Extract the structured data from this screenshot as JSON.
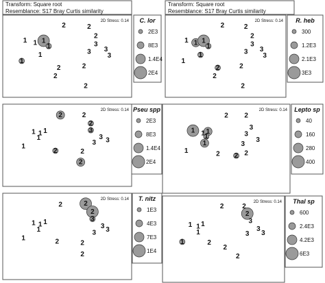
{
  "header": {
    "transform_text": "Transform: Square root",
    "resemblance_text": "Resemblance: S17 Bray Curtis similarity"
  },
  "stress_text": "2D Stress: 0.14",
  "chart_data": [
    {
      "type": "scatter",
      "title": "C. lor",
      "legend_values": [
        "2E3",
        "8E3",
        "1.4E4",
        "2E4"
      ],
      "points": [
        {
          "label": "1",
          "x": 1,
          "y": 4.5,
          "bubble": 0
        },
        {
          "label": "1",
          "x": 1.6,
          "y": 4.2,
          "bubble": 0
        },
        {
          "label": "1",
          "x": 2.1,
          "y": 4.45,
          "bubble": 3
        },
        {
          "label": "1",
          "x": 2.4,
          "y": 3.75,
          "bubble": 1
        },
        {
          "label": "1",
          "x": 1.9,
          "y": 2.6,
          "bubble": 0
        },
        {
          "label": "1",
          "x": 0.8,
          "y": 1.8,
          "bubble": 1
        },
        {
          "label": "2",
          "x": 3.3,
          "y": 6.5,
          "bubble": 0
        },
        {
          "label": "2",
          "x": 4.8,
          "y": 6.3,
          "bubble": 0
        },
        {
          "label": "2",
          "x": 4.5,
          "y": 1.1,
          "bubble": 0
        },
        {
          "label": "2",
          "x": 2.8,
          "y": -0.2,
          "bubble": 0
        },
        {
          "label": "2",
          "x": 5.2,
          "y": 5.1,
          "bubble": 0
        },
        {
          "label": "2",
          "x": 3.0,
          "y": 0.9,
          "bubble": 0
        },
        {
          "label": "2",
          "x": 4.6,
          "y": -1.5,
          "bubble": 0
        },
        {
          "label": "3",
          "x": 5.2,
          "y": 4.0,
          "bubble": 0
        },
        {
          "label": "3",
          "x": 5.8,
          "y": 3.3,
          "bubble": 0
        },
        {
          "label": "3",
          "x": 6.0,
          "y": 2.5,
          "bubble": 0
        },
        {
          "label": "3",
          "x": 4.8,
          "y": 3.0,
          "bubble": 0
        }
      ]
    },
    {
      "type": "scatter",
      "title": "R. heb",
      "legend_values": [
        "300",
        "1.2E3",
        "2.1E3",
        "3E3"
      ],
      "points": [
        {
          "label": "1",
          "x": 1,
          "y": 4.5,
          "bubble": 0
        },
        {
          "label": "1",
          "x": 1.6,
          "y": 4.2,
          "bubble": 2
        },
        {
          "label": "1",
          "x": 2.1,
          "y": 4.45,
          "bubble": 3
        },
        {
          "label": "1",
          "x": 2.4,
          "y": 3.75,
          "bubble": 1
        },
        {
          "label": "1",
          "x": 1.9,
          "y": 2.6,
          "bubble": 1
        },
        {
          "label": "1",
          "x": 0.8,
          "y": 1.8,
          "bubble": 0
        },
        {
          "label": "2",
          "x": 3.3,
          "y": 6.5,
          "bubble": 0
        },
        {
          "label": "2",
          "x": 4.8,
          "y": 6.3,
          "bubble": 0
        },
        {
          "label": "2",
          "x": 4.5,
          "y": 1.1,
          "bubble": 0
        },
        {
          "label": "2",
          "x": 2.8,
          "y": -0.2,
          "bubble": 0
        },
        {
          "label": "2",
          "x": 5.2,
          "y": 5.1,
          "bubble": 0
        },
        {
          "label": "2",
          "x": 3.0,
          "y": 0.9,
          "bubble": 1
        },
        {
          "label": "2",
          "x": 4.6,
          "y": -1.5,
          "bubble": 0
        },
        {
          "label": "3",
          "x": 5.2,
          "y": 4.0,
          "bubble": 0
        },
        {
          "label": "3",
          "x": 5.8,
          "y": 3.3,
          "bubble": 0
        },
        {
          "label": "3",
          "x": 6.0,
          "y": 2.5,
          "bubble": 0
        },
        {
          "label": "3",
          "x": 4.8,
          "y": 3.0,
          "bubble": 0
        }
      ]
    },
    {
      "type": "scatter",
      "title": "Pseu spp",
      "legend_values": [
        "2E3",
        "8E3",
        "1.4E4",
        "2E4"
      ],
      "points": [
        {
          "label": "1",
          "x": 1.5,
          "y": 4.2,
          "bubble": 0
        },
        {
          "label": "1",
          "x": 1.9,
          "y": 4.0,
          "bubble": 0
        },
        {
          "label": "1",
          "x": 2.2,
          "y": 4.3,
          "bubble": 0
        },
        {
          "label": "1",
          "x": 1.8,
          "y": 3.4,
          "bubble": 0
        },
        {
          "label": "1",
          "x": 0.9,
          "y": 2.3,
          "bubble": 0
        },
        {
          "label": "2",
          "x": 3.1,
          "y": 6.4,
          "bubble": 2
        },
        {
          "label": "2",
          "x": 4.5,
          "y": 6.4,
          "bubble": 0
        },
        {
          "label": "2",
          "x": 4.9,
          "y": 5.3,
          "bubble": 1
        },
        {
          "label": "2",
          "x": 2.8,
          "y": 1.7,
          "bubble": 1
        },
        {
          "label": "2",
          "x": 4.4,
          "y": 1.6,
          "bubble": 0
        },
        {
          "label": "2",
          "x": 4.3,
          "y": 0.2,
          "bubble": 2
        },
        {
          "label": "3",
          "x": 4.9,
          "y": 4.4,
          "bubble": 1
        },
        {
          "label": "3",
          "x": 5.5,
          "y": 3.5,
          "bubble": 0
        },
        {
          "label": "3",
          "x": 5.9,
          "y": 3.1,
          "bubble": 0
        },
        {
          "label": "3",
          "x": 5.1,
          "y": 2.8,
          "bubble": 0
        }
      ]
    },
    {
      "type": "scatter",
      "title": "Lepto sp",
      "legend_values": [
        "40",
        "160",
        "280",
        "400"
      ],
      "points": [
        {
          "label": "1",
          "x": 1.5,
          "y": 4.6,
          "bubble": 3
        },
        {
          "label": "1",
          "x": 2.1,
          "y": 4.3,
          "bubble": 0
        },
        {
          "label": "1",
          "x": 2.4,
          "y": 4.5,
          "bubble": 2
        },
        {
          "label": "1",
          "x": 2.3,
          "y": 3.9,
          "bubble": 1
        },
        {
          "label": "1",
          "x": 2.2,
          "y": 3.1,
          "bubble": 2
        },
        {
          "label": "1",
          "x": 1.1,
          "y": 2.2,
          "bubble": 0
        },
        {
          "label": "2",
          "x": 3.5,
          "y": 6.4,
          "bubble": 0
        },
        {
          "label": "2",
          "x": 4.7,
          "y": 6.4,
          "bubble": 0
        },
        {
          "label": "2",
          "x": 3.0,
          "y": 1.8,
          "bubble": 0
        },
        {
          "label": "2",
          "x": 4.1,
          "y": 1.6,
          "bubble": 1
        },
        {
          "label": "2",
          "x": 4.7,
          "y": 1.9,
          "bubble": 0
        },
        {
          "label": "3",
          "x": 5.0,
          "y": 5.0,
          "bubble": 0
        },
        {
          "label": "3",
          "x": 4.7,
          "y": 4.2,
          "bubble": 0
        },
        {
          "label": "3",
          "x": 5.4,
          "y": 3.5,
          "bubble": 0
        },
        {
          "label": "3",
          "x": 4.5,
          "y": 3.0,
          "bubble": 0
        }
      ]
    },
    {
      "type": "scatter",
      "title": "T. nitz",
      "legend_values": [
        "1E3",
        "4E3",
        "7E3",
        "1E4"
      ],
      "points": [
        {
          "label": "1",
          "x": 1.5,
          "y": 4.1,
          "bubble": 0
        },
        {
          "label": "1",
          "x": 1.9,
          "y": 3.9,
          "bubble": 0
        },
        {
          "label": "1",
          "x": 2.2,
          "y": 4.2,
          "bubble": 0
        },
        {
          "label": "1",
          "x": 1.8,
          "y": 3.3,
          "bubble": 0
        },
        {
          "label": "1",
          "x": 0.9,
          "y": 2.2,
          "bubble": 0
        },
        {
          "label": "2",
          "x": 3.1,
          "y": 6.4,
          "bubble": 0
        },
        {
          "label": "2",
          "x": 4.6,
          "y": 6.5,
          "bubble": 3
        },
        {
          "label": "2",
          "x": 5.0,
          "y": 5.5,
          "bubble": 3
        },
        {
          "label": "2",
          "x": 2.9,
          "y": 1.8,
          "bubble": 0
        },
        {
          "label": "2",
          "x": 4.4,
          "y": 1.6,
          "bubble": 0
        },
        {
          "label": "2",
          "x": 4.4,
          "y": 0.2,
          "bubble": 0
        },
        {
          "label": "3",
          "x": 5.0,
          "y": 4.6,
          "bubble": 1
        },
        {
          "label": "3",
          "x": 5.6,
          "y": 3.7,
          "bubble": 0
        },
        {
          "label": "3",
          "x": 5.9,
          "y": 3.3,
          "bubble": 0
        },
        {
          "label": "3",
          "x": 5.1,
          "y": 2.9,
          "bubble": 0
        }
      ]
    },
    {
      "type": "scatter",
      "title": "Thal sp",
      "legend_values": [
        "600",
        "2.4E3",
        "4.2E3",
        "6E3"
      ],
      "points": [
        {
          "label": "1",
          "x": 1.4,
          "y": 4.2,
          "bubble": 0
        },
        {
          "label": "1",
          "x": 1.9,
          "y": 4.0,
          "bubble": 0
        },
        {
          "label": "1",
          "x": 2.2,
          "y": 4.3,
          "bubble": 0
        },
        {
          "label": "1",
          "x": 1.9,
          "y": 3.3,
          "bubble": 0
        },
        {
          "label": "1",
          "x": 0.9,
          "y": 2.1,
          "bubble": 1
        },
        {
          "label": "2",
          "x": 3.4,
          "y": 6.5,
          "bubble": 0
        },
        {
          "label": "2",
          "x": 4.8,
          "y": 6.5,
          "bubble": 0
        },
        {
          "label": "2",
          "x": 5.0,
          "y": 5.6,
          "bubble": 3
        },
        {
          "label": "2",
          "x": 2.6,
          "y": 2.0,
          "bubble": 0
        },
        {
          "label": "2",
          "x": 3.6,
          "y": 1.4,
          "bubble": 0
        },
        {
          "label": "2",
          "x": 4.4,
          "y": 0.3,
          "bubble": 0
        },
        {
          "label": "3",
          "x": 5.2,
          "y": 4.7,
          "bubble": 0
        },
        {
          "label": "3",
          "x": 5.7,
          "y": 3.7,
          "bubble": 0
        },
        {
          "label": "3",
          "x": 6.0,
          "y": 3.2,
          "bubble": 0
        },
        {
          "label": "3",
          "x": 5.0,
          "y": 3.1,
          "bubble": 0
        }
      ]
    }
  ]
}
